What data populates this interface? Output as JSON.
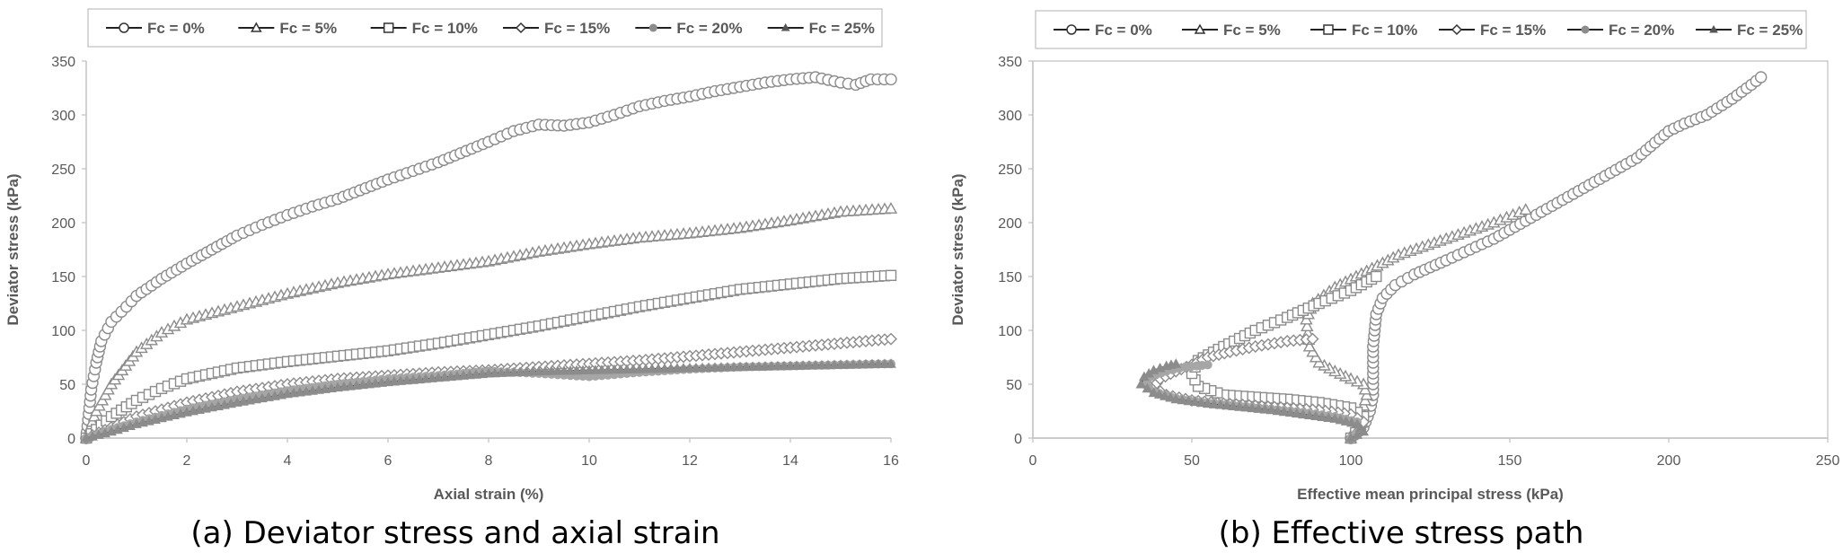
{
  "chart_data": [
    {
      "type": "line",
      "caption": "(a) Deviator stress and axial strain",
      "xlabel": "Axial strain (%)",
      "ylabel": "Deviator stress (kPa)",
      "xlim": [
        0,
        16
      ],
      "ylim": [
        0,
        350
      ],
      "xticks": [
        "0",
        "2",
        "4",
        "6",
        "8",
        "10",
        "12",
        "14",
        "16"
      ],
      "yticks": [
        "0",
        "50",
        "100",
        "150",
        "200",
        "250",
        "300",
        "350"
      ],
      "grid": false,
      "legend": "top",
      "series": [
        {
          "name": "Fc = 0%",
          "marker": "circle",
          "color": "#8c8c8c",
          "x": [
            0,
            0.1,
            0.2,
            0.3,
            0.5,
            0.8,
            1.0,
            1.5,
            2.0,
            2.5,
            3.0,
            3.5,
            4.0,
            4.5,
            5.0,
            6.0,
            7.0,
            8.0,
            8.5,
            9.0,
            9.5,
            10.0,
            10.5,
            11.0,
            11.5,
            12.0,
            12.5,
            13.0,
            13.5,
            14.0,
            14.5,
            15.0,
            15.3,
            15.6,
            16.0
          ],
          "y": [
            0,
            45,
            70,
            90,
            108,
            122,
            132,
            148,
            162,
            175,
            188,
            198,
            207,
            215,
            222,
            240,
            256,
            275,
            285,
            291,
            290,
            293,
            300,
            308,
            313,
            317,
            322,
            326,
            330,
            333,
            335,
            330,
            328,
            333,
            333
          ]
        },
        {
          "name": "Fc = 5%",
          "marker": "triangle",
          "color": "#8c8c8c",
          "x": [
            0,
            0.2,
            0.5,
            1.0,
            1.5,
            2.0,
            3.0,
            4.0,
            5.0,
            6.0,
            7.0,
            8.0,
            9.0,
            10.0,
            11.0,
            12.0,
            13.0,
            14.0,
            15.0,
            16.0
          ],
          "y": [
            0,
            25,
            50,
            80,
            98,
            110,
            122,
            134,
            144,
            152,
            158,
            164,
            173,
            180,
            186,
            190,
            195,
            202,
            210,
            213
          ]
        },
        {
          "name": "Fc = 10%",
          "marker": "square",
          "color": "#8c8c8c",
          "x": [
            0,
            0.5,
            1.0,
            1.5,
            2.0,
            3.0,
            4.0,
            5.0,
            6.0,
            7.0,
            8.0,
            9.0,
            10.0,
            11.0,
            12.0,
            13.0,
            14.0,
            15.0,
            16.0
          ],
          "y": [
            0,
            20,
            35,
            46,
            55,
            65,
            71,
            76,
            81,
            88,
            96,
            104,
            113,
            122,
            130,
            138,
            143,
            148,
            151
          ]
        },
        {
          "name": "Fc = 15%",
          "marker": "diamond",
          "color": "#8c8c8c",
          "x": [
            0,
            0.5,
            1.0,
            2.0,
            3.0,
            4.0,
            5.0,
            6.0,
            7.0,
            8.0,
            9.0,
            10.0,
            11.0,
            12.0,
            13.0,
            14.0,
            15.0,
            16.0
          ],
          "y": [
            0,
            10,
            20,
            33,
            43,
            50,
            55,
            58,
            61,
            63,
            66,
            69,
            72,
            76,
            80,
            84,
            88,
            92
          ]
        },
        {
          "name": "Fc = 20%",
          "marker": "dot",
          "color": "#a6a6a6",
          "x": [
            0,
            0.5,
            1.0,
            2.0,
            3.0,
            4.0,
            5.0,
            6.0,
            7.0,
            8.0,
            9.0,
            10.0,
            11.0,
            12.0,
            13.0,
            14.0,
            15.0,
            16.0
          ],
          "y": [
            0,
            8,
            15,
            27,
            36,
            44,
            50,
            55,
            58,
            62,
            60,
            57,
            61,
            64,
            66,
            67,
            68,
            69
          ]
        },
        {
          "name": "Fc = 25%",
          "marker": "small-triangle",
          "color": "#8c8c8c",
          "x": [
            0,
            0.5,
            1.0,
            2.0,
            3.0,
            4.0,
            5.0,
            6.0,
            7.0,
            8.0,
            9.0,
            10.0,
            11.0,
            12.0,
            13.0,
            14.0,
            15.0,
            16.0
          ],
          "y": [
            0,
            6,
            13,
            24,
            33,
            41,
            47,
            52,
            56,
            60,
            62,
            63,
            64,
            65,
            66,
            67,
            68,
            69
          ]
        }
      ]
    },
    {
      "type": "line",
      "caption": "(b) Effective stress path",
      "xlabel": "Effective mean principal stress (kPa)",
      "ylabel": "Deviator stress (kPa)",
      "xlim": [
        0,
        250
      ],
      "ylim": [
        0,
        350
      ],
      "xticks": [
        "0",
        "50",
        "100",
        "150",
        "200",
        "250"
      ],
      "yticks": [
        "0",
        "50",
        "100",
        "150",
        "200",
        "250",
        "300",
        "350"
      ],
      "grid": false,
      "legend": "top",
      "series": [
        {
          "name": "Fc = 0%",
          "marker": "circle",
          "color": "#8c8c8c",
          "x": [
            100,
            104,
            106,
            107,
            107,
            107,
            107,
            107.5,
            108,
            110,
            114,
            120,
            130,
            145,
            160,
            175,
            190,
            200,
            205,
            212,
            220,
            226,
            229
          ],
          "y": [
            0,
            10,
            25,
            40,
            55,
            70,
            85,
            100,
            115,
            130,
            142,
            152,
            165,
            185,
            210,
            235,
            260,
            285,
            292,
            300,
            315,
            328,
            335
          ]
        },
        {
          "name": "Fc = 5%",
          "marker": "triangle",
          "color": "#8c8c8c",
          "x": [
            100,
            103,
            105,
            104,
            100,
            95,
            90,
            87,
            86,
            88,
            95,
            105,
            115,
            130,
            145,
            155
          ],
          "y": [
            0,
            20,
            40,
            50,
            55,
            62,
            70,
            85,
            110,
            125,
            140,
            155,
            170,
            185,
            200,
            212
          ]
        },
        {
          "name": "Fc = 10%",
          "marker": "square",
          "color": "#8c8c8c",
          "x": [
            100,
            103,
            104,
            100,
            90,
            80,
            70,
            60,
            52,
            50,
            52,
            60,
            70,
            80,
            90,
            100,
            105,
            108
          ],
          "y": [
            0,
            10,
            20,
            28,
            33,
            36,
            38,
            40,
            48,
            60,
            72,
            85,
            100,
            112,
            125,
            137,
            145,
            150
          ]
        },
        {
          "name": "Fc = 15%",
          "marker": "diamond",
          "color": "#8c8c8c",
          "x": [
            100,
            103,
            104,
            100,
            90,
            80,
            70,
            60,
            50,
            42,
            38,
            40,
            45,
            50,
            55,
            62,
            70,
            80,
            88
          ],
          "y": [
            0,
            8,
            15,
            22,
            26,
            28,
            30,
            32,
            35,
            40,
            47,
            55,
            62,
            68,
            75,
            80,
            85,
            90,
            92
          ]
        },
        {
          "name": "Fc = 20%",
          "marker": "dot",
          "color": "#a6a6a6",
          "x": [
            100,
            103,
            102,
            95,
            85,
            75,
            65,
            55,
            45,
            38,
            35,
            37,
            42,
            48,
            55
          ],
          "y": [
            0,
            8,
            15,
            20,
            24,
            27,
            30,
            33,
            37,
            43,
            50,
            57,
            62,
            66,
            68
          ]
        },
        {
          "name": "Fc = 25%",
          "marker": "small-triangle",
          "color": "#8c8c8c",
          "x": [
            100,
            104,
            102,
            95,
            85,
            75,
            65,
            55,
            45,
            38,
            34,
            35,
            38,
            42,
            45
          ],
          "y": [
            0,
            6,
            13,
            18,
            22,
            26,
            29,
            32,
            36,
            42,
            50,
            57,
            63,
            67,
            69
          ]
        }
      ]
    }
  ]
}
